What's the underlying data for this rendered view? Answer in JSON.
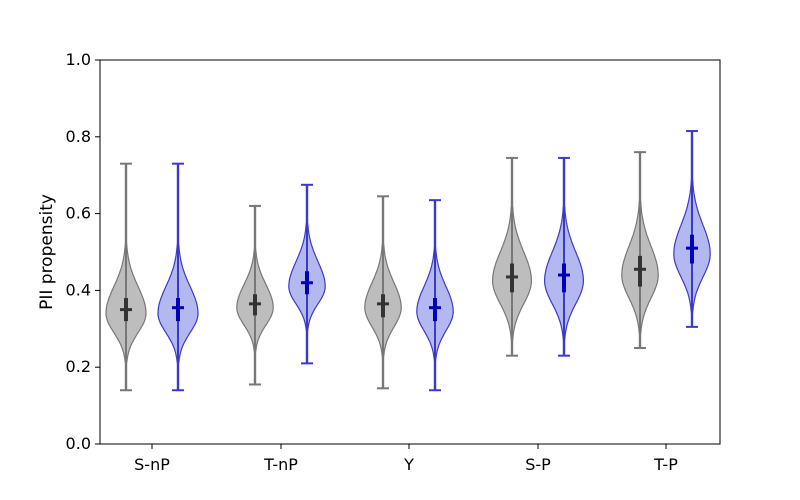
{
  "chart_data": {
    "type": "violin",
    "ylabel": "PII propensity",
    "ylim": [
      0.0,
      1.0
    ],
    "y_ticks": [
      "0.0",
      "0.2",
      "0.4",
      "0.6",
      "0.8",
      "1.0"
    ],
    "categories": [
      "S-nP",
      "T-nP",
      "Y",
      "S-P",
      "T-P"
    ],
    "grid": false,
    "legend": "none",
    "series_colors": {
      "gray": {
        "fill": "#bdbdbd",
        "line": "#777777",
        "marker": "#333333"
      },
      "blue": {
        "fill": "#b3b8f0",
        "line": "#3a3ac8",
        "marker": "#0000b8"
      }
    },
    "violins": [
      {
        "category": "S-nP",
        "series": "gray",
        "min": 0.14,
        "max": 0.73,
        "median": 0.35,
        "q1": 0.32,
        "q3": 0.38,
        "mode": 0.34,
        "sd_low": 0.05,
        "sd_high": 0.07,
        "width": 0.33
      },
      {
        "category": "S-nP",
        "series": "blue",
        "min": 0.14,
        "max": 0.73,
        "median": 0.355,
        "q1": 0.32,
        "q3": 0.38,
        "mode": 0.34,
        "sd_low": 0.05,
        "sd_high": 0.07,
        "width": 0.33
      },
      {
        "category": "T-nP",
        "series": "gray",
        "min": 0.155,
        "max": 0.62,
        "median": 0.365,
        "q1": 0.335,
        "q3": 0.39,
        "mode": 0.355,
        "sd_low": 0.045,
        "sd_high": 0.06,
        "width": 0.3
      },
      {
        "category": "T-nP",
        "series": "blue",
        "min": 0.21,
        "max": 0.675,
        "median": 0.42,
        "q1": 0.39,
        "q3": 0.45,
        "mode": 0.41,
        "sd_low": 0.045,
        "sd_high": 0.065,
        "width": 0.3
      },
      {
        "category": "Y",
        "series": "gray",
        "min": 0.145,
        "max": 0.645,
        "median": 0.365,
        "q1": 0.33,
        "q3": 0.39,
        "mode": 0.355,
        "sd_low": 0.05,
        "sd_high": 0.065,
        "width": 0.3
      },
      {
        "category": "Y",
        "series": "blue",
        "min": 0.14,
        "max": 0.635,
        "median": 0.355,
        "q1": 0.32,
        "q3": 0.38,
        "mode": 0.345,
        "sd_low": 0.05,
        "sd_high": 0.065,
        "width": 0.3
      },
      {
        "category": "S-P",
        "series": "gray",
        "min": 0.23,
        "max": 0.745,
        "median": 0.435,
        "q1": 0.395,
        "q3": 0.47,
        "mode": 0.425,
        "sd_low": 0.06,
        "sd_high": 0.075,
        "width": 0.32
      },
      {
        "category": "S-P",
        "series": "blue",
        "min": 0.23,
        "max": 0.745,
        "median": 0.44,
        "q1": 0.395,
        "q3": 0.47,
        "mode": 0.425,
        "sd_low": 0.06,
        "sd_high": 0.075,
        "width": 0.32
      },
      {
        "category": "T-P",
        "series": "gray",
        "min": 0.25,
        "max": 0.76,
        "median": 0.455,
        "q1": 0.41,
        "q3": 0.49,
        "mode": 0.44,
        "sd_low": 0.06,
        "sd_high": 0.075,
        "width": 0.3
      },
      {
        "category": "T-P",
        "series": "blue",
        "min": 0.305,
        "max": 0.815,
        "median": 0.51,
        "q1": 0.47,
        "q3": 0.545,
        "mode": 0.495,
        "sd_low": 0.06,
        "sd_high": 0.075,
        "width": 0.3
      }
    ]
  }
}
